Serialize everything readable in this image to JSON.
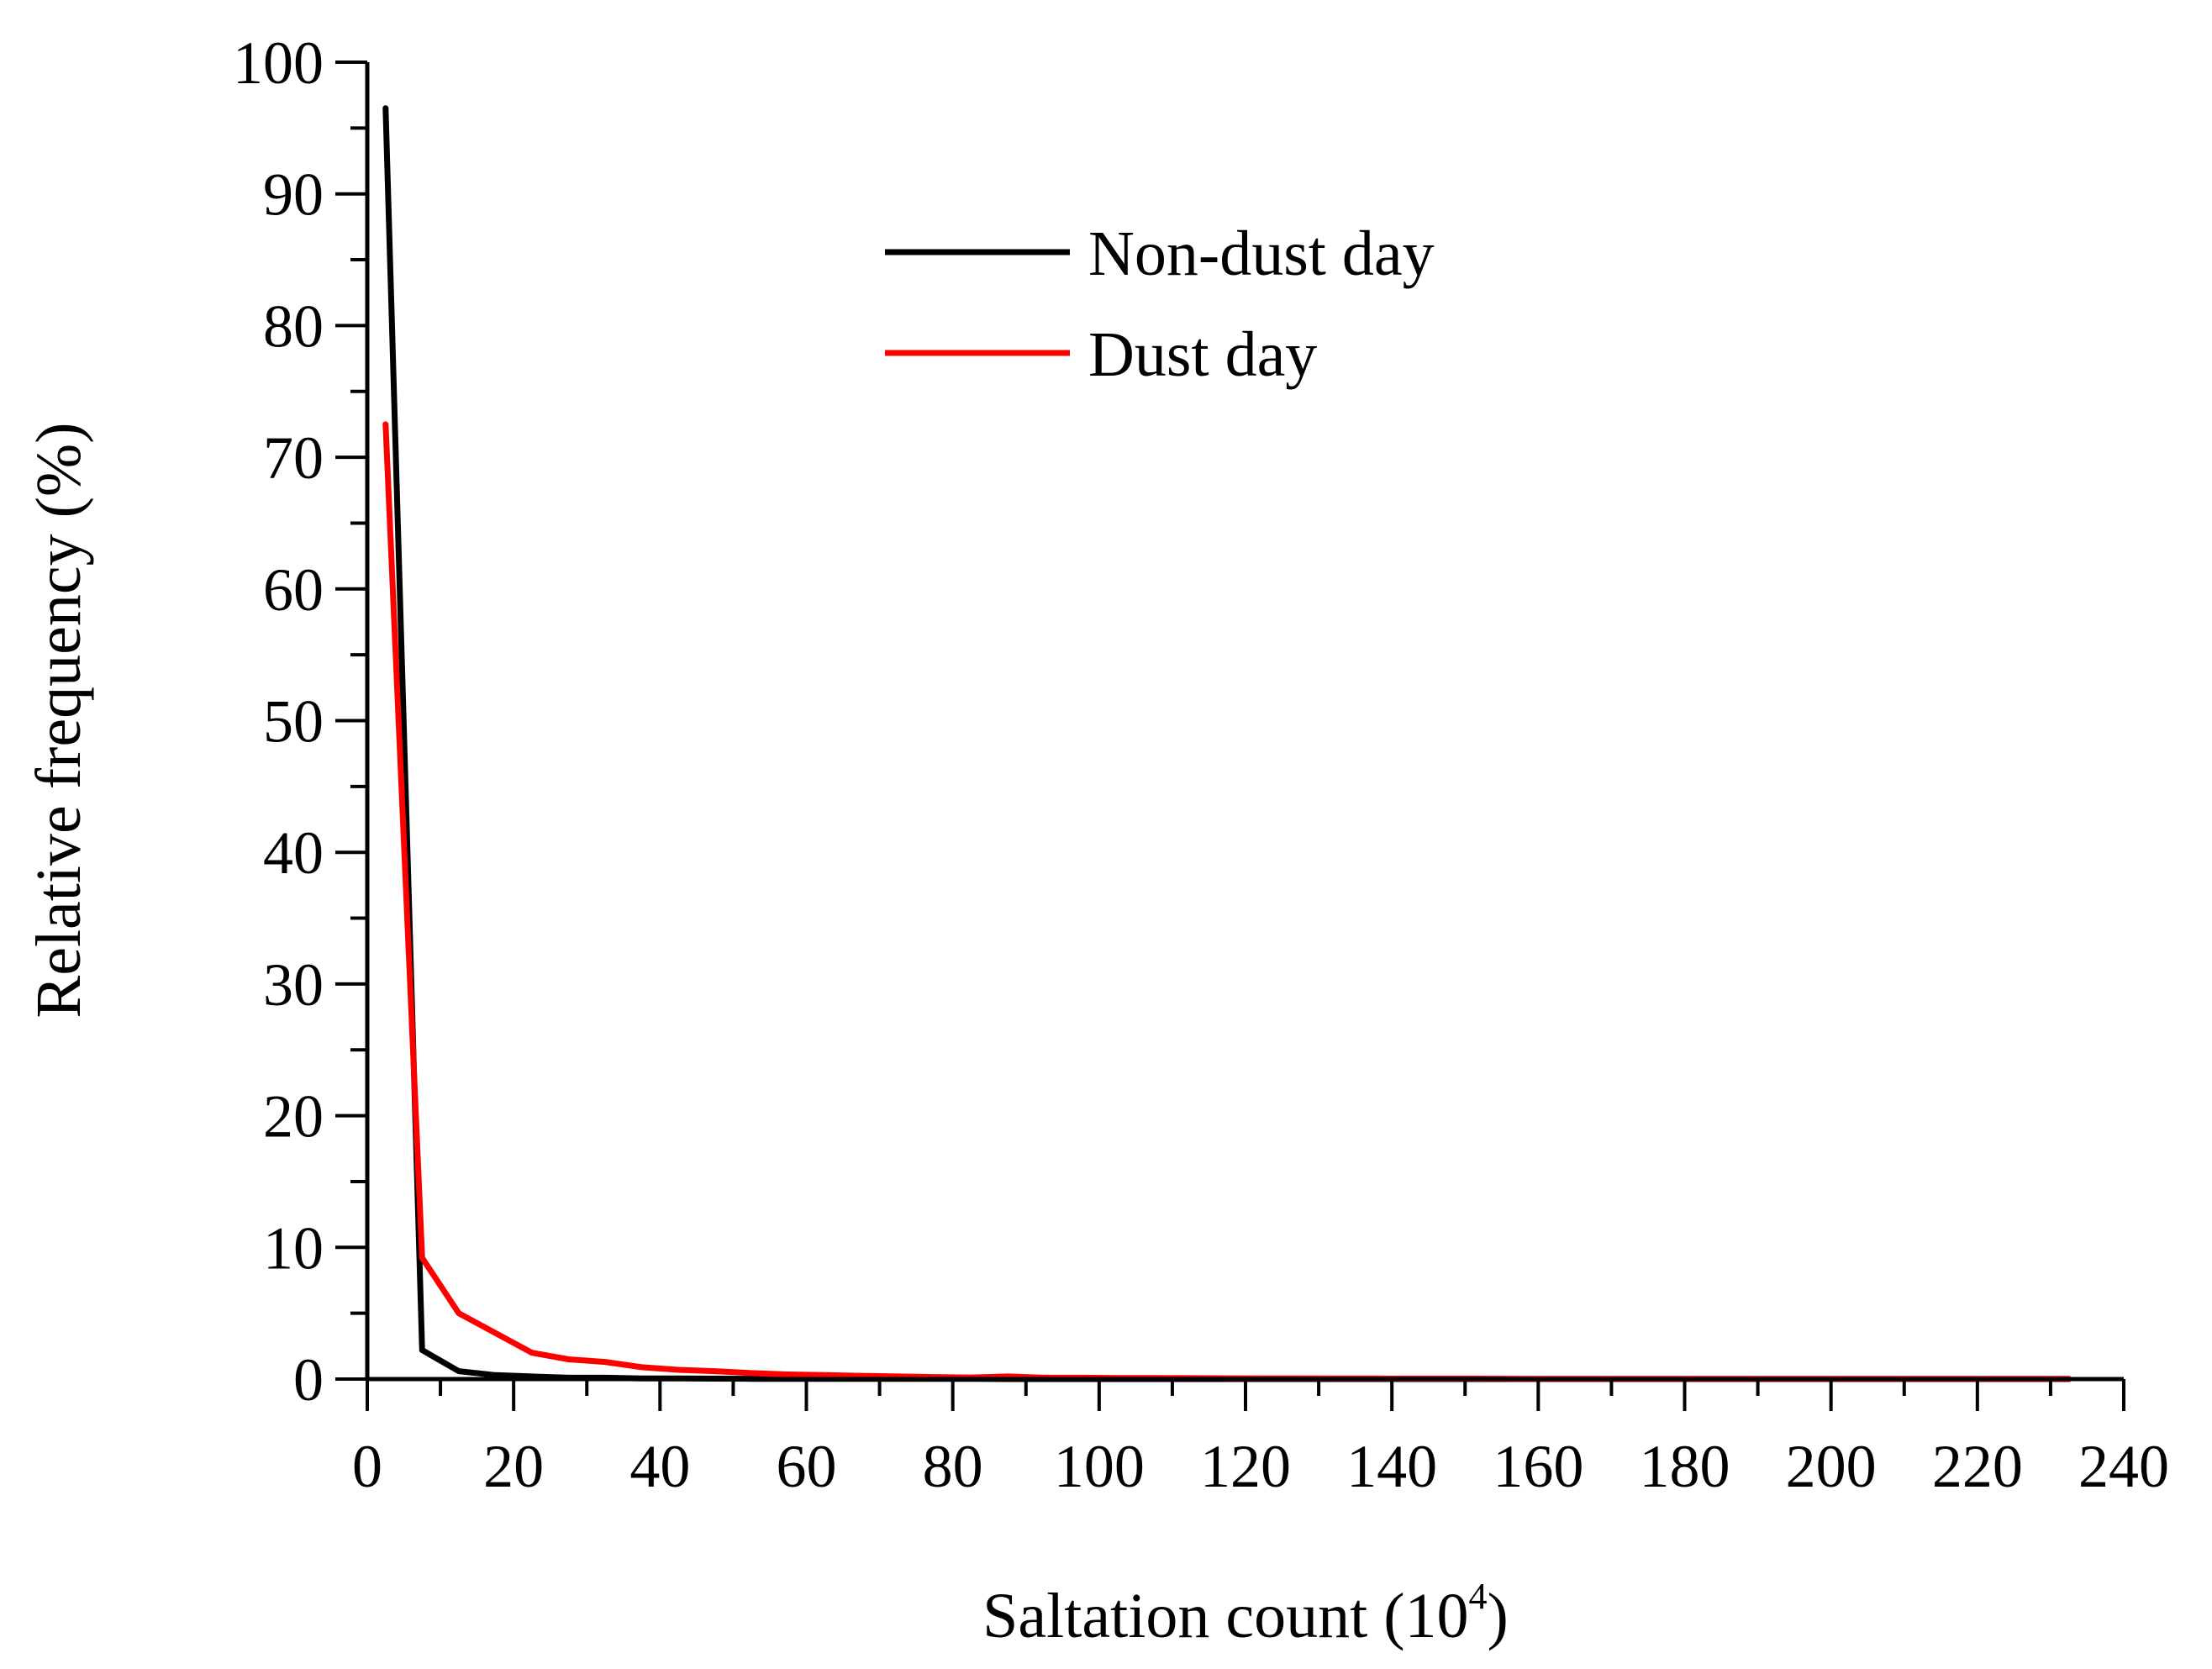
{
  "chart_data": {
    "type": "line",
    "xlabel": "Saltation count (10",
    "xlabel_sup": "4",
    "xlabel_end": ")",
    "ylabel": "Relative frequency (%)",
    "xlim": [
      0,
      240
    ],
    "ylim": [
      0,
      100
    ],
    "x_ticks": [
      "0",
      "20",
      "40",
      "60",
      "80",
      "100",
      "120",
      "140",
      "160",
      "180",
      "200",
      "220",
      "240"
    ],
    "y_ticks": [
      "0",
      "10",
      "20",
      "30",
      "40",
      "50",
      "60",
      "70",
      "80",
      "90",
      "100"
    ],
    "grid": false,
    "legend_position": "top-center",
    "series": [
      {
        "name": "Non-dust day",
        "color": "#000000",
        "x": [
          2.5,
          7.5,
          12.5,
          17.5,
          22.5,
          27.5,
          32.5,
          37.5,
          42.5,
          47.5,
          52.5,
          57.5,
          62.5,
          67.5,
          72.5,
          77.5,
          82.5,
          87.5,
          92.5,
          97.5,
          102.5,
          107.5,
          112.5,
          117.5,
          122.5,
          127.5,
          132.5,
          137.5,
          142.5,
          147.5,
          152.5,
          157.5,
          162.5,
          167.5,
          172.5,
          177.5,
          182.5,
          187.5,
          192.5,
          197.5,
          202.5,
          207.5,
          212.5,
          217.5,
          222.5,
          227.5,
          232.5
        ],
        "y": [
          96.5,
          2.2,
          0.6,
          0.3,
          0.2,
          0.1,
          0.1,
          0.05,
          0.05,
          0.03,
          0.02,
          0.02,
          0.01,
          0.01,
          0.01,
          0.01,
          0.01,
          0,
          0,
          0,
          0,
          0,
          0,
          0,
          0,
          0,
          0,
          0,
          0,
          0,
          0,
          0,
          0,
          0,
          0,
          0,
          0,
          0,
          0,
          0,
          0,
          0,
          0,
          0,
          0,
          0,
          0
        ]
      },
      {
        "name": "Dust day",
        "color": "#ff0000",
        "x": [
          2.5,
          7.5,
          12.5,
          17.5,
          22.5,
          27.5,
          32.5,
          37.5,
          42.5,
          47.5,
          52.5,
          57.5,
          62.5,
          67.5,
          72.5,
          77.5,
          82.5,
          87.5,
          92.5,
          97.5,
          102.5,
          107.5,
          112.5,
          117.5,
          122.5,
          127.5,
          132.5,
          137.5,
          142.5,
          147.5,
          152.5,
          157.5,
          162.5,
          167.5,
          172.5,
          177.5,
          182.5,
          187.5,
          192.5,
          197.5,
          202.5,
          207.5,
          212.5,
          217.5,
          222.5,
          227.5,
          232.5
        ],
        "y": [
          72.5,
          9.2,
          5.0,
          3.5,
          2.0,
          1.5,
          1.3,
          0.9,
          0.7,
          0.6,
          0.45,
          0.35,
          0.3,
          0.25,
          0.2,
          0.15,
          0.12,
          0.2,
          0.1,
          0.1,
          0.08,
          0.08,
          0.07,
          0.06,
          0.05,
          0.05,
          0.04,
          0.04,
          0.03,
          0.03,
          0.03,
          0.02,
          0.02,
          0.02,
          0.02,
          0.02,
          0.01,
          0.01,
          0.01,
          0.01,
          0.01,
          0.01,
          0.01,
          0.01,
          0.01,
          0.01,
          0.01
        ]
      }
    ]
  }
}
